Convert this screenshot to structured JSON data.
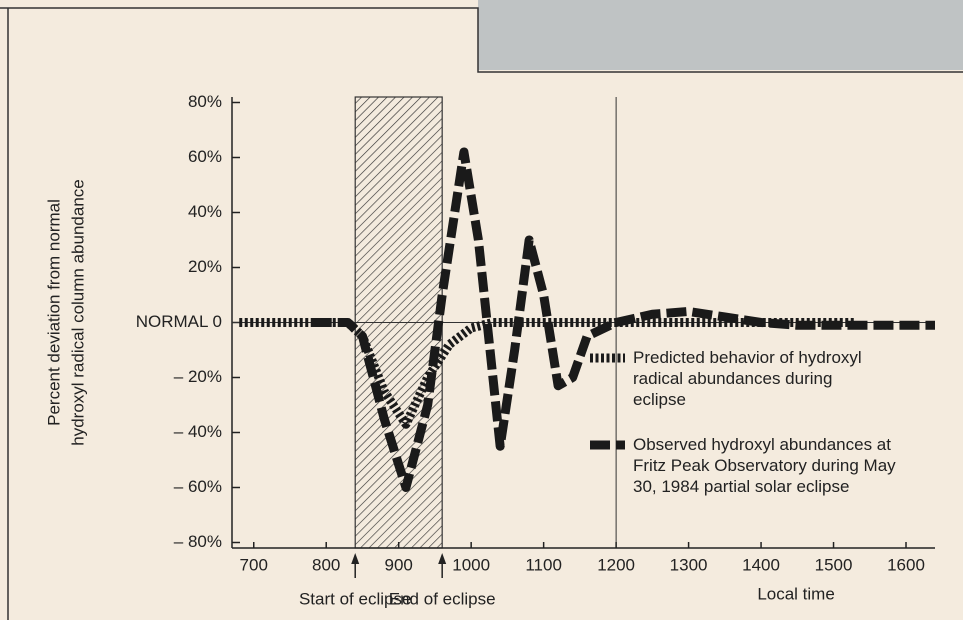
{
  "chart_data": {
    "type": "line",
    "ylabel": [
      "Percent deviation from normal",
      "hydroxyl radical column abundance"
    ],
    "xlabel": "Local time",
    "xlim": [
      670,
      1640
    ],
    "ylim": [
      -82,
      82
    ],
    "xticks": [
      700,
      800,
      900,
      1000,
      1100,
      1200,
      1300,
      1400,
      1500,
      1600
    ],
    "yticks": [
      {
        "value": 80,
        "label": "80%"
      },
      {
        "value": 60,
        "label": "60%"
      },
      {
        "value": 40,
        "label": "40%"
      },
      {
        "value": 20,
        "label": "20%"
      },
      {
        "value": 0,
        "label": "NORMAL 0"
      },
      {
        "value": -20,
        "label": "– 20%"
      },
      {
        "value": -40,
        "label": "– 40%"
      },
      {
        "value": -60,
        "label": "– 60%"
      },
      {
        "value": -80,
        "label": "– 80%"
      }
    ],
    "eclipse": {
      "start": 840,
      "end": 960,
      "start_label": "Start of eclipse",
      "end_label": "End of eclipse"
    },
    "reference_x": 1200,
    "series": [
      {
        "name": "Predicted behavior of hydroxyl radical abundances during eclipse",
        "color": "#1a1a1a",
        "style": "dotted",
        "x": [
          680,
          830,
          850,
          880,
          910,
          940,
          970,
          1000,
          1030,
          1100,
          1200,
          1300,
          1400,
          1530
        ],
        "values": [
          0,
          0,
          -5,
          -25,
          -37,
          -20,
          -8,
          -2,
          0,
          0,
          0,
          0,
          0,
          0
        ]
      },
      {
        "name": "Observed hydroxyl abundances at Fritz Peak Observatory during May 30, 1984 partial solar eclipse",
        "color": "#1a1a1a",
        "style": "dashed",
        "x": [
          780,
          830,
          850,
          880,
          910,
          940,
          960,
          990,
          1010,
          1040,
          1060,
          1080,
          1100,
          1120,
          1140,
          1160,
          1200,
          1250,
          1300,
          1350,
          1400,
          1450,
          1640
        ],
        "values": [
          0,
          0,
          -5,
          -35,
          -60,
          -30,
          10,
          62,
          30,
          -45,
          -10,
          30,
          10,
          -23,
          -20,
          -5,
          0,
          3,
          4,
          2,
          0,
          -1,
          -1
        ]
      }
    ]
  }
}
